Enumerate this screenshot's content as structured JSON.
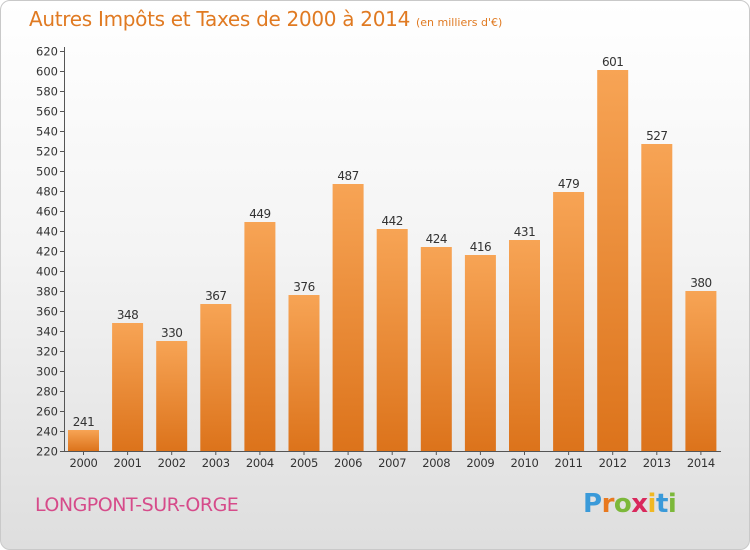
{
  "header": {
    "title": "Autres Impôts et Taxes de 2000 à 2014",
    "unit": "(en milliers d'€)"
  },
  "footer": {
    "commune": "LONGPONT-SUR-ORGE",
    "logo_letters": [
      "P",
      "r",
      "o",
      "x",
      "i",
      "t",
      "i"
    ],
    "logo_colors": [
      "#3a9ad9",
      "#e8791f",
      "#7cb83a",
      "#d9285c",
      "#f0b823",
      "#3a9ad9",
      "#7cb83a"
    ]
  },
  "chart_data": {
    "type": "bar",
    "title": "Autres Impôts et Taxes de 2000 à 2014",
    "categories": [
      "2000",
      "2001",
      "2002",
      "2003",
      "2004",
      "2005",
      "2006",
      "2007",
      "2008",
      "2009",
      "2010",
      "2011",
      "2012",
      "2013",
      "2014"
    ],
    "values": [
      241,
      348,
      330,
      367,
      449,
      376,
      487,
      442,
      424,
      416,
      431,
      479,
      601,
      527,
      380
    ],
    "ylim": [
      220,
      620
    ],
    "ytick_step": 20,
    "grid": false,
    "bar_color_top": "#f7a455",
    "bar_color_bottom": "#dc731b",
    "xlabel": "",
    "ylabel": ""
  }
}
